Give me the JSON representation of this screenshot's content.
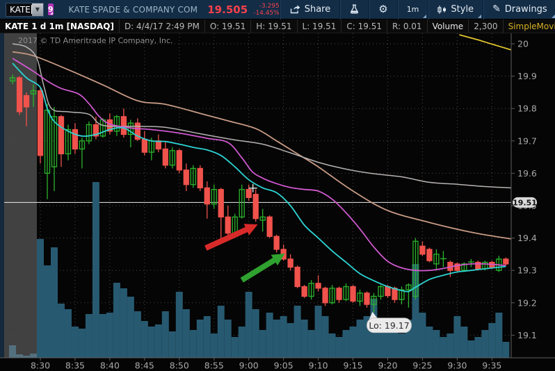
{
  "toolbar": {
    "symbol_input": "KATE",
    "linked_group": "9",
    "company": "KATE SPADE & COMPANY COM",
    "price": "19.505",
    "change": "-3.295",
    "change_pct": "-14.45%",
    "share_label": "Share",
    "timeframe_label": "1m",
    "style_label": "Style",
    "drawings_label": "Drawings"
  },
  "header": {
    "title": "KATE 1 d 1m [NASDAQ]",
    "fields": [
      "D: 4/4/17 2:49 PM",
      "O: 19.51",
      "H: 19.51",
      "L: 19.51",
      "C: 19.51",
      "R: 0.01"
    ],
    "volume_label": "Volume",
    "volume_value": "2,300",
    "study_label": "SimpleMovingAvg (CLOSE,..."
  },
  "chart": {
    "copyright": "2017 © TD Ameritrade IP Company, Inc.",
    "last_price_badge": "19.51",
    "low_bubble": "Lo: 19.17"
  },
  "chart_data": {
    "type": "candlestick",
    "symbol": "KATE",
    "timeframe": "1 d 1m",
    "first_bar_time": "8:26",
    "interval_minutes": 1,
    "premarket_bars": 4,
    "y_axis_ticks": [
      20,
      19.9,
      19.8,
      19.7,
      19.6,
      19.5,
      19.4,
      19.3,
      19.2,
      19.1
    ],
    "x_axis_ticks": [
      "8:30",
      "8:35",
      "8:40",
      "8:45",
      "8:50",
      "8:55",
      "9:00",
      "9:05",
      "9:10",
      "9:15",
      "9:20",
      "9:25",
      "9:30",
      "9:35"
    ],
    "last_price": 19.51,
    "day_low": 19.17,
    "candles": [
      [
        19.885,
        19.905,
        19.875,
        19.895
      ],
      [
        19.895,
        19.9,
        19.78,
        19.79
      ],
      [
        19.84,
        19.85,
        19.745,
        19.805
      ],
      [
        19.845,
        19.875,
        19.805,
        19.855
      ],
      [
        19.855,
        19.865,
        19.63,
        19.655
      ],
      [
        19.6,
        19.815,
        19.52,
        19.795
      ],
      [
        19.62,
        19.805,
        19.545,
        19.775
      ],
      [
        19.775,
        19.78,
        19.62,
        19.66
      ],
      [
        19.66,
        19.75,
        19.64,
        19.735
      ],
      [
        19.735,
        19.755,
        19.66,
        19.675
      ],
      [
        19.675,
        19.71,
        19.615,
        19.7
      ],
      [
        19.7,
        19.76,
        19.69,
        19.75
      ],
      [
        19.75,
        19.775,
        19.705,
        19.715
      ],
      [
        19.715,
        19.77,
        19.71,
        19.765
      ],
      [
        19.765,
        19.785,
        19.72,
        19.73
      ],
      [
        19.73,
        19.78,
        19.715,
        19.775
      ],
      [
        19.775,
        19.8,
        19.71,
        19.72
      ],
      [
        19.72,
        19.765,
        19.68,
        19.755
      ],
      [
        19.755,
        19.77,
        19.7,
        19.705
      ],
      [
        19.705,
        19.73,
        19.655,
        19.665
      ],
      [
        19.665,
        19.71,
        19.64,
        19.7
      ],
      [
        19.7,
        19.72,
        19.665,
        19.675
      ],
      [
        19.675,
        19.7,
        19.615,
        19.625
      ],
      [
        19.625,
        19.68,
        19.615,
        19.67
      ],
      [
        19.67,
        19.675,
        19.6,
        19.61
      ],
      [
        19.61,
        19.63,
        19.545,
        19.565
      ],
      [
        19.565,
        19.625,
        19.555,
        19.615
      ],
      [
        19.615,
        19.625,
        19.545,
        19.555
      ],
      [
        19.555,
        19.575,
        19.46,
        19.505
      ],
      [
        19.505,
        19.565,
        19.49,
        19.55
      ],
      [
        19.55,
        19.555,
        19.4,
        19.465
      ],
      [
        19.465,
        19.5,
        19.405,
        19.415
      ],
      [
        19.415,
        19.475,
        19.4,
        19.465
      ],
      [
        19.465,
        19.565,
        19.46,
        19.55
      ],
      [
        19.55,
        19.565,
        19.515,
        19.525
      ],
      [
        19.535,
        19.55,
        19.45,
        19.46
      ],
      [
        19.455,
        19.49,
        19.42,
        19.465
      ],
      [
        19.465,
        19.47,
        19.4,
        19.405
      ],
      [
        19.405,
        19.41,
        19.355,
        19.365
      ],
      [
        19.365,
        19.38,
        19.33,
        19.335
      ],
      [
        19.335,
        19.35,
        19.3,
        19.31
      ],
      [
        19.31,
        19.315,
        19.245,
        19.25
      ],
      [
        19.25,
        19.255,
        19.215,
        19.22
      ],
      [
        19.22,
        19.27,
        19.21,
        19.26
      ],
      [
        19.26,
        19.285,
        19.235,
        19.245
      ],
      [
        19.245,
        19.25,
        19.19,
        19.2
      ],
      [
        19.2,
        19.255,
        19.195,
        19.245
      ],
      [
        19.245,
        19.25,
        19.2,
        19.21
      ],
      [
        19.21,
        19.26,
        19.205,
        19.25
      ],
      [
        19.25,
        19.255,
        19.2,
        19.205
      ],
      [
        19.205,
        19.24,
        19.19,
        19.23
      ],
      [
        19.23,
        19.235,
        19.185,
        19.195
      ],
      [
        19.195,
        19.23,
        19.17,
        19.22
      ],
      [
        19.22,
        19.255,
        19.21,
        19.25
      ],
      [
        19.25,
        19.255,
        19.215,
        19.222
      ],
      [
        19.245,
        19.25,
        19.2,
        19.21
      ],
      [
        19.21,
        19.25,
        19.195,
        19.24
      ],
      [
        19.24,
        19.26,
        19.185,
        19.255
      ],
      [
        19.22,
        19.4,
        19.21,
        19.39
      ],
      [
        19.375,
        19.39,
        19.345,
        19.35
      ],
      [
        19.365,
        19.37,
        19.325,
        19.33
      ],
      [
        19.32,
        19.365,
        19.3,
        19.35
      ],
      [
        19.335,
        19.36,
        19.31,
        19.336
      ],
      [
        19.325,
        19.33,
        19.28,
        19.3
      ],
      [
        19.32,
        19.325,
        19.295,
        19.3
      ],
      [
        19.3,
        19.325,
        19.295,
        19.32
      ],
      [
        19.325,
        19.335,
        19.31,
        19.326
      ],
      [
        19.325,
        19.33,
        19.3,
        19.305
      ],
      [
        19.305,
        19.33,
        19.3,
        19.325
      ],
      [
        19.325,
        19.33,
        19.305,
        19.31
      ],
      [
        19.3,
        19.345,
        19.295,
        19.335
      ],
      [
        19.335,
        19.34,
        19.315,
        19.32
      ]
    ],
    "volumes": [
      1800,
      500,
      300,
      600,
      17100,
      13300,
      15900,
      7800,
      7000,
      4500,
      4200,
      6300,
      25300,
      6300,
      6500,
      10800,
      10000,
      8800,
      6700,
      5300,
      4500,
      4800,
      6700,
      3800,
      9500,
      7000,
      4000,
      5500,
      6000,
      3500,
      7500,
      5500,
      3000,
      4500,
      9500,
      7000,
      4000,
      6500,
      5500,
      6000,
      5000,
      7500,
      5500,
      4000,
      7500,
      6000,
      3500,
      3000,
      4000,
      4500,
      5500,
      6000,
      8500,
      5000,
      4500,
      4000,
      3500,
      5500,
      13500,
      6500,
      4500,
      4000,
      3000,
      3500,
      6000,
      4500,
      2500,
      3000,
      4000,
      5000,
      6500,
      2300
    ],
    "ma_lines": [
      {
        "name": "sma-tan",
        "color": "#c79a85",
        "width": 1.8,
        "points": [
          [
            0,
            19.975
          ],
          [
            3,
            19.963
          ],
          [
            8,
            19.92
          ],
          [
            13,
            19.873
          ],
          [
            18,
            19.824
          ],
          [
            22,
            19.813
          ],
          [
            27,
            19.785
          ],
          [
            31,
            19.762
          ],
          [
            35,
            19.738
          ],
          [
            38,
            19.7
          ],
          [
            41,
            19.66
          ],
          [
            44,
            19.62
          ],
          [
            49,
            19.545
          ],
          [
            54,
            19.485
          ],
          [
            60,
            19.448
          ],
          [
            66,
            19.418
          ],
          [
            71.8,
            19.397
          ]
        ]
      },
      {
        "name": "sma-gray",
        "color": "#b7b3b1",
        "width": 1.5,
        "points": [
          [
            0,
            20.0
          ],
          [
            2,
            19.99
          ],
          [
            3.5,
            19.955
          ],
          [
            4.5,
            19.87
          ],
          [
            5.6,
            19.8
          ],
          [
            8,
            19.79
          ],
          [
            11,
            19.782
          ],
          [
            13,
            19.748
          ],
          [
            18,
            19.745
          ],
          [
            22,
            19.742
          ],
          [
            27,
            19.722
          ],
          [
            32,
            19.703
          ],
          [
            36,
            19.69
          ],
          [
            40,
            19.663
          ],
          [
            44,
            19.634
          ],
          [
            47.5,
            19.615
          ],
          [
            51.5,
            19.6
          ],
          [
            56,
            19.589
          ],
          [
            60,
            19.572
          ],
          [
            64,
            19.566
          ],
          [
            68,
            19.559
          ],
          [
            71.8,
            19.555
          ]
        ]
      },
      {
        "name": "sma-yellow",
        "color": "#e3c42d",
        "width": 1.8,
        "points": [
          [
            64.3,
            20.028
          ],
          [
            67,
            20.012
          ],
          [
            69,
            19.999
          ],
          [
            71.8,
            19.981
          ]
        ]
      },
      {
        "name": "sma-magenta",
        "color": "#ce58ce",
        "width": 1.8,
        "points": [
          [
            0,
            19.955
          ],
          [
            3,
            19.915
          ],
          [
            5,
            19.885
          ],
          [
            7,
            19.862
          ],
          [
            9.5,
            19.845
          ],
          [
            11,
            19.815
          ],
          [
            12.5,
            19.775
          ],
          [
            14,
            19.752
          ],
          [
            17,
            19.74
          ],
          [
            20,
            19.735
          ],
          [
            24,
            19.724
          ],
          [
            28,
            19.708
          ],
          [
            31,
            19.695
          ],
          [
            33,
            19.648
          ],
          [
            34.5,
            19.605
          ],
          [
            36,
            19.585
          ],
          [
            38,
            19.568
          ],
          [
            40,
            19.556
          ],
          [
            42,
            19.55
          ],
          [
            44,
            19.545
          ],
          [
            46,
            19.52
          ],
          [
            48,
            19.478
          ],
          [
            50,
            19.428
          ],
          [
            52,
            19.372
          ],
          [
            54,
            19.328
          ],
          [
            56,
            19.308
          ],
          [
            58,
            19.3
          ],
          [
            60,
            19.3
          ],
          [
            62,
            19.306
          ],
          [
            64,
            19.315
          ],
          [
            66,
            19.32
          ],
          [
            68,
            19.32
          ],
          [
            71,
            19.315
          ]
        ]
      },
      {
        "name": "sma-cyan",
        "color": "#2ed3d3",
        "width": 1.8,
        "points": [
          [
            0,
            19.94
          ],
          [
            2,
            19.895
          ],
          [
            4,
            19.865
          ],
          [
            5,
            19.8
          ],
          [
            6,
            19.76
          ],
          [
            8,
            19.73
          ],
          [
            10,
            19.715
          ],
          [
            12,
            19.72
          ],
          [
            14,
            19.735
          ],
          [
            16,
            19.74
          ],
          [
            18,
            19.715
          ],
          [
            20,
            19.7
          ],
          [
            22,
            19.698
          ],
          [
            24,
            19.69
          ],
          [
            26,
            19.68
          ],
          [
            28,
            19.672
          ],
          [
            30,
            19.655
          ],
          [
            32,
            19.62
          ],
          [
            34,
            19.58
          ],
          [
            36,
            19.555
          ],
          [
            38,
            19.54
          ],
          [
            40,
            19.5
          ],
          [
            42,
            19.44
          ],
          [
            44,
            19.4
          ],
          [
            46,
            19.36
          ],
          [
            48,
            19.325
          ],
          [
            50,
            19.29
          ],
          [
            52,
            19.268
          ],
          [
            54,
            19.25
          ],
          [
            56,
            19.238
          ],
          [
            57,
            19.235
          ],
          [
            58,
            19.248
          ],
          [
            60,
            19.272
          ],
          [
            62,
            19.285
          ],
          [
            64,
            19.295
          ],
          [
            66,
            19.3
          ],
          [
            68,
            19.305
          ],
          [
            71,
            19.312
          ]
        ]
      }
    ],
    "annotations": {
      "arrows": [
        {
          "name": "red-arrow",
          "color": "#d92a2a",
          "from": [
            27.8,
            19.369
          ],
          "to": [
            35.3,
            19.442
          ]
        },
        {
          "name": "green-arrow",
          "color": "#2fa12f",
          "from": [
            33.0,
            19.27
          ],
          "to": [
            39.2,
            19.352
          ]
        }
      ],
      "low_bubble": {
        "t": 51.7,
        "price": 19.17
      },
      "cursor": {
        "t": 34.6,
        "price": 19.554
      }
    },
    "colors": {
      "up_candle": "#2bb32b",
      "down_candle": "#f0524c",
      "volume": "#275a71",
      "volume_premarket": "#53707f",
      "premarket_bg": "#414141",
      "grid": "#4a4a4a",
      "last_price_line": "#ededed",
      "axis_text": "#a8a8a8",
      "badge_bg": "#d9d9d9",
      "badge_text": "#111111"
    }
  }
}
